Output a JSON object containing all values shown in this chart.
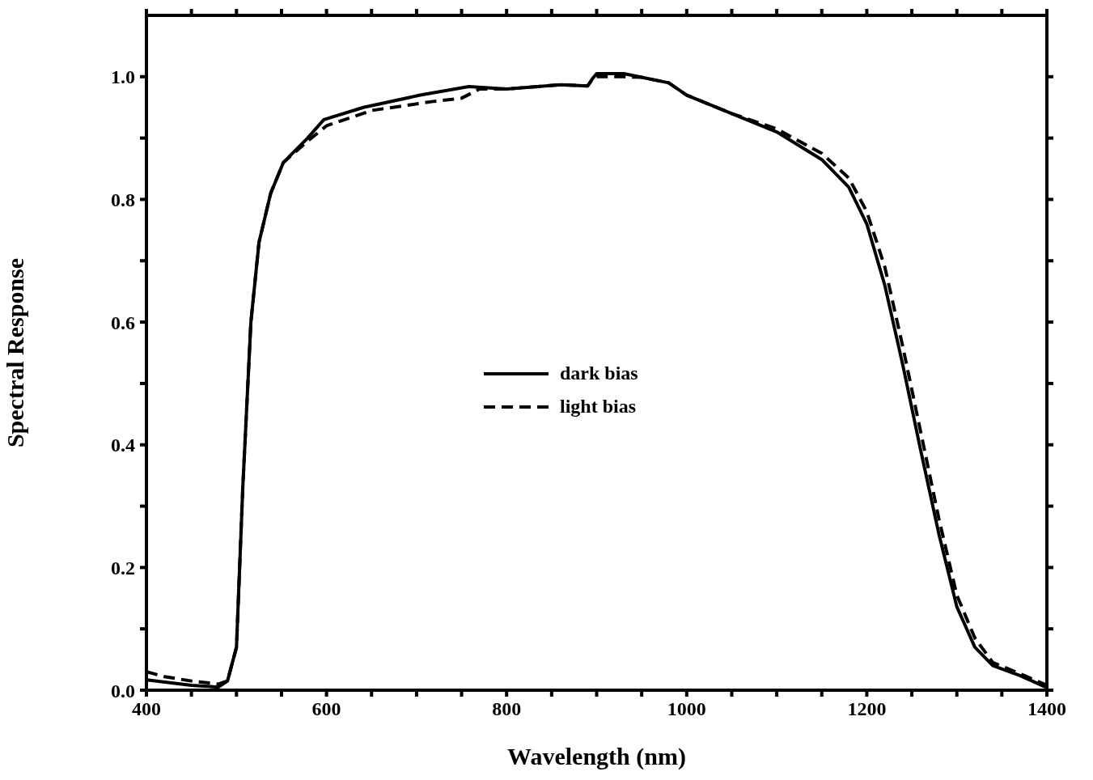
{
  "chart_data": {
    "type": "line",
    "xlabel": "Wavelength (nm)",
    "ylabel": "Spectral Response",
    "xlim": [
      400,
      1400
    ],
    "ylim": [
      0,
      1.1
    ],
    "xticks": [
      400,
      {
        "value": 450,
        "label": null
      },
      {
        "value": 500,
        "label": null
      },
      {
        "value": 550,
        "label": null
      },
      600,
      {
        "value": 650,
        "label": null
      },
      {
        "value": 700,
        "label": null
      },
      {
        "value": 750,
        "label": null
      },
      800,
      {
        "value": 850,
        "label": null
      },
      {
        "value": 900,
        "label": null
      },
      {
        "value": 950,
        "label": null
      },
      1000,
      {
        "value": 1050,
        "label": null
      },
      {
        "value": 1100,
        "label": null
      },
      {
        "value": 1150,
        "label": null
      },
      1200,
      {
        "value": 1250,
        "label": null
      },
      {
        "value": 1300,
        "label": null
      },
      {
        "value": 1350,
        "label": null
      },
      1400
    ],
    "yticks": [
      {
        "value": 0,
        "label": "0.0"
      },
      {
        "value": 0.1,
        "label": null
      },
      0.2,
      {
        "value": 0.3,
        "label": null
      },
      0.4,
      {
        "value": 0.5,
        "label": null
      },
      0.6,
      {
        "value": 0.7,
        "label": null
      },
      0.8,
      {
        "value": 0.9,
        "label": null
      },
      {
        "value": 1,
        "label": "1.0"
      }
    ],
    "legend": "center",
    "marker": "none",
    "series": [
      {
        "name": "dark bias",
        "color": "#000000",
        "line_style": "solid",
        "x": [
          400,
          450,
          480,
          490,
          500,
          507,
          516,
          525,
          538,
          552,
          579,
          597,
          641,
          704,
          758,
          800,
          860,
          890,
          895,
          900,
          930,
          950,
          980,
          1000,
          1050,
          1100,
          1150,
          1180,
          1200,
          1220,
          1240,
          1260,
          1280,
          1300,
          1320,
          1340,
          1370,
          1400
        ],
        "values": [
          0.017,
          0.008,
          0.005,
          0.015,
          0.07,
          0.33,
          0.6,
          0.73,
          0.81,
          0.86,
          0.9,
          0.93,
          0.95,
          0.97,
          0.984,
          0.98,
          0.987,
          0.985,
          0.996,
          1.005,
          1.005,
          0.999,
          0.99,
          0.97,
          0.94,
          0.91,
          0.865,
          0.82,
          0.76,
          0.66,
          0.53,
          0.39,
          0.255,
          0.136,
          0.07,
          0.04,
          0.024,
          0.004
        ]
      },
      {
        "name": "light bias",
        "color": "#000000",
        "line_style": "dashed",
        "x": [
          400,
          420,
          450,
          480,
          490,
          500,
          507,
          516,
          525,
          538,
          552,
          579,
          600,
          650,
          720,
          750,
          770,
          800,
          860,
          890,
          895,
          900,
          930,
          950,
          980,
          1000,
          1050,
          1100,
          1150,
          1180,
          1200,
          1220,
          1240,
          1260,
          1280,
          1300,
          1320,
          1340,
          1370,
          1400
        ],
        "values": [
          0.03,
          0.022,
          0.015,
          0.01,
          0.015,
          0.07,
          0.33,
          0.6,
          0.73,
          0.81,
          0.86,
          0.895,
          0.92,
          0.945,
          0.96,
          0.965,
          0.98,
          0.98,
          0.987,
          0.985,
          0.995,
          1.0,
          1.0,
          0.999,
          0.99,
          0.97,
          0.94,
          0.915,
          0.875,
          0.835,
          0.78,
          0.69,
          0.56,
          0.42,
          0.28,
          0.155,
          0.085,
          0.045,
          0.027,
          0.008
        ]
      }
    ]
  }
}
